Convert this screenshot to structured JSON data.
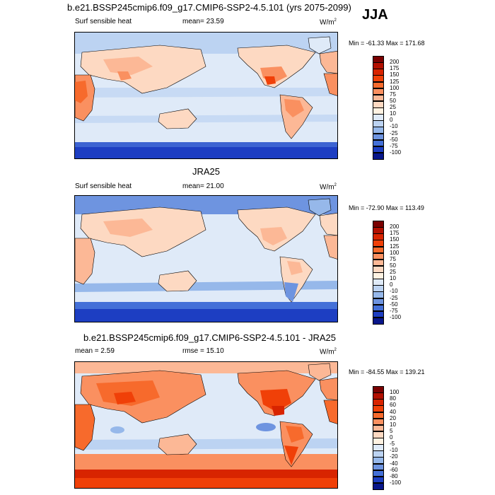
{
  "season": "JJA",
  "units_main": "W/m",
  "units_sup": "2",
  "panels": [
    {
      "title": "b.e21.BSSP245cmip6.f09_g17.CMIP6-SSP2-4.5.101 (yrs 2075-2099)",
      "variable": "Surf sensible heat",
      "stat": "mean=  23.59",
      "minmax": "Min = -61.33 Max = 171.68",
      "levels": [
        "200",
        "175",
        "150",
        "125",
        "100",
        "75",
        "50",
        "25",
        "10",
        "0",
        "-10",
        "-25",
        "-50",
        "-75",
        "-100"
      ]
    },
    {
      "title": "JRA25",
      "variable": "Surf sensible heat",
      "stat": "mean=  21.00",
      "minmax": "Min = -72.90 Max = 113.49",
      "levels": [
        "200",
        "175",
        "150",
        "125",
        "100",
        "75",
        "50",
        "25",
        "10",
        "0",
        "-10",
        "-25",
        "-50",
        "-75",
        "-100"
      ]
    },
    {
      "title": "b.e21.BSSP245cmip6.f09_g17.CMIP6-SSP2-4.5.101 - JRA25",
      "stat_left": "mean =   2.59",
      "stat_mid": "rmse =  15.10",
      "minmax": "Min = -84.55 Max = 139.21",
      "levels": [
        "100",
        "80",
        "60",
        "40",
        "20",
        "10",
        "5",
        "0",
        "-5",
        "-10",
        "-20",
        "-40",
        "-60",
        "-80",
        "-100"
      ]
    }
  ],
  "colors": {
    "palette": [
      "#7a0000",
      "#b20f00",
      "#d82400",
      "#f04008",
      "#f76a2c",
      "#fa9060",
      "#fcb896",
      "#fdd9c2",
      "#fff2e2",
      "#dfeaf8",
      "#bcd3f2",
      "#96b8ea",
      "#6e94e0",
      "#4470d8",
      "#1d3ec2",
      "#08168a"
    ]
  }
}
